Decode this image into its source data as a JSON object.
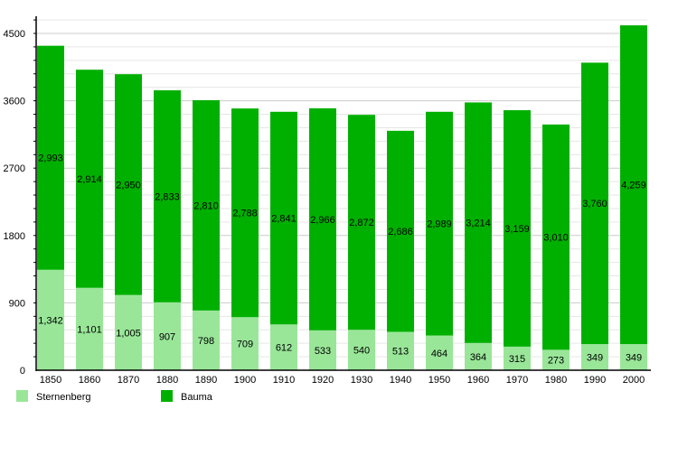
{
  "chart_data": {
    "type": "bar",
    "stacked": true,
    "categories": [
      "1850",
      "1860",
      "1870",
      "1880",
      "1890",
      "1900",
      "1910",
      "1920",
      "1930",
      "1940",
      "1950",
      "1960",
      "1970",
      "1980",
      "1990",
      "2000"
    ],
    "series": [
      {
        "name": "Sternenberg",
        "color": "#99e699",
        "values": [
          1342,
          1101,
          1005,
          907,
          798,
          709,
          612,
          533,
          540,
          513,
          464,
          364,
          315,
          273,
          349,
          349
        ]
      },
      {
        "name": "Bauma",
        "color": "#00b000",
        "values": [
          2993,
          2914,
          2950,
          2833,
          2810,
          2788,
          2841,
          2966,
          2872,
          2686,
          2989,
          3214,
          3159,
          3010,
          3760,
          4259
        ]
      }
    ],
    "yticks": [
      0,
      900,
      1800,
      2700,
      3600,
      4500
    ],
    "ylim": [
      0,
      4680
    ],
    "grid": true,
    "legend": "bottom-left"
  }
}
